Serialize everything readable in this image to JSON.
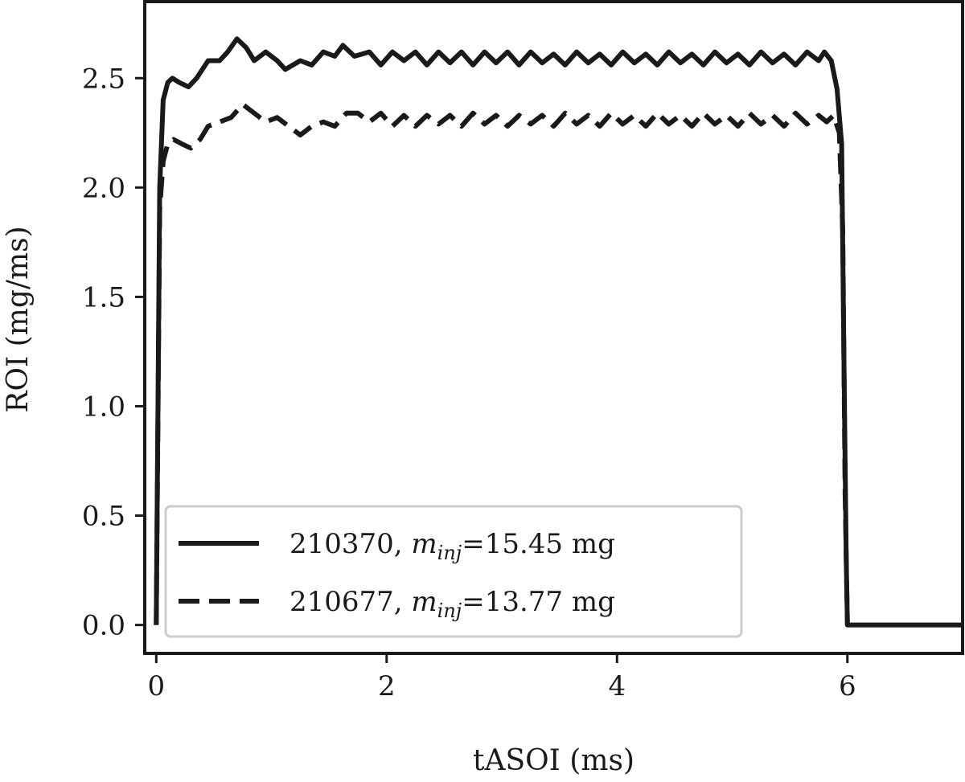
{
  "chart_data": {
    "type": "line",
    "xlabel": "tASOI (ms)",
    "ylabel": "ROI (mg/ms)",
    "xlim": [
      -0.1,
      7.0
    ],
    "ylim": [
      -0.13,
      2.85
    ],
    "xticks": [
      0,
      2,
      4,
      6
    ],
    "xtick_labels": [
      "0",
      "2",
      "4",
      "6"
    ],
    "yticks": [
      0.0,
      0.5,
      1.0,
      1.5,
      2.0,
      2.5
    ],
    "ytick_labels": [
      "0.0",
      "0.5",
      "1.0",
      "1.5",
      "2.0",
      "2.5"
    ],
    "grid": false,
    "legend_position": "lower-left",
    "series": [
      {
        "name_prefix": "210370, ",
        "name_var": "m",
        "name_sub": "inj",
        "name_suffix": "=15.45 mg",
        "style": "solid",
        "color": "#1a1a1a",
        "x": [
          0.0,
          0.03,
          0.06,
          0.1,
          0.14,
          0.2,
          0.28,
          0.35,
          0.45,
          0.55,
          0.62,
          0.7,
          0.78,
          0.85,
          0.95,
          1.05,
          1.12,
          1.25,
          1.35,
          1.45,
          1.55,
          1.62,
          1.72,
          1.85,
          1.95,
          2.05,
          2.15,
          2.25,
          2.35,
          2.45,
          2.55,
          2.65,
          2.75,
          2.85,
          2.95,
          3.05,
          3.15,
          3.25,
          3.35,
          3.45,
          3.55,
          3.65,
          3.75,
          3.85,
          3.95,
          4.05,
          4.15,
          4.25,
          4.35,
          4.45,
          4.55,
          4.65,
          4.75,
          4.85,
          4.95,
          5.05,
          5.15,
          5.25,
          5.35,
          5.45,
          5.55,
          5.65,
          5.75,
          5.8,
          5.86,
          5.91,
          5.95,
          5.97,
          5.99,
          6.0,
          6.02,
          7.0
        ],
        "y": [
          0.0,
          2.0,
          2.4,
          2.48,
          2.5,
          2.48,
          2.46,
          2.5,
          2.58,
          2.58,
          2.62,
          2.68,
          2.64,
          2.58,
          2.62,
          2.58,
          2.54,
          2.58,
          2.56,
          2.62,
          2.6,
          2.65,
          2.6,
          2.62,
          2.56,
          2.62,
          2.58,
          2.62,
          2.56,
          2.62,
          2.57,
          2.62,
          2.56,
          2.62,
          2.57,
          2.62,
          2.56,
          2.62,
          2.57,
          2.61,
          2.56,
          2.62,
          2.57,
          2.61,
          2.56,
          2.62,
          2.57,
          2.61,
          2.56,
          2.62,
          2.57,
          2.61,
          2.56,
          2.62,
          2.57,
          2.61,
          2.56,
          2.62,
          2.57,
          2.61,
          2.56,
          2.62,
          2.58,
          2.62,
          2.58,
          2.45,
          2.2,
          1.2,
          0.3,
          0.0,
          0.0,
          0.0
        ]
      },
      {
        "name_prefix": "210677, ",
        "name_var": "m",
        "name_sub": "inj",
        "name_suffix": "=13.77 mg",
        "style": "dashed",
        "color": "#1a1a1a",
        "x": [
          0.0,
          0.03,
          0.06,
          0.1,
          0.15,
          0.22,
          0.3,
          0.38,
          0.45,
          0.55,
          0.65,
          0.75,
          0.85,
          0.95,
          1.05,
          1.15,
          1.25,
          1.35,
          1.45,
          1.55,
          1.65,
          1.75,
          1.85,
          1.95,
          2.05,
          2.15,
          2.25,
          2.35,
          2.45,
          2.55,
          2.65,
          2.75,
          2.85,
          2.95,
          3.05,
          3.15,
          3.25,
          3.35,
          3.45,
          3.55,
          3.65,
          3.75,
          3.85,
          3.95,
          4.05,
          4.15,
          4.25,
          4.35,
          4.45,
          4.55,
          4.65,
          4.75,
          4.85,
          4.95,
          5.05,
          5.15,
          5.25,
          5.35,
          5.45,
          5.55,
          5.65,
          5.75,
          5.82,
          5.88,
          5.93,
          5.96,
          5.98,
          6.0
        ],
        "y": [
          0.0,
          1.9,
          2.12,
          2.2,
          2.22,
          2.2,
          2.18,
          2.22,
          2.28,
          2.3,
          2.32,
          2.38,
          2.34,
          2.3,
          2.32,
          2.28,
          2.24,
          2.28,
          2.3,
          2.28,
          2.34,
          2.34,
          2.3,
          2.34,
          2.28,
          2.33,
          2.28,
          2.33,
          2.29,
          2.33,
          2.28,
          2.34,
          2.29,
          2.33,
          2.28,
          2.33,
          2.29,
          2.33,
          2.28,
          2.34,
          2.29,
          2.33,
          2.28,
          2.34,
          2.29,
          2.33,
          2.28,
          2.34,
          2.29,
          2.33,
          2.28,
          2.34,
          2.29,
          2.33,
          2.28,
          2.34,
          2.29,
          2.33,
          2.28,
          2.34,
          2.29,
          2.33,
          2.3,
          2.33,
          2.25,
          1.8,
          0.6,
          0.0
        ]
      }
    ]
  }
}
